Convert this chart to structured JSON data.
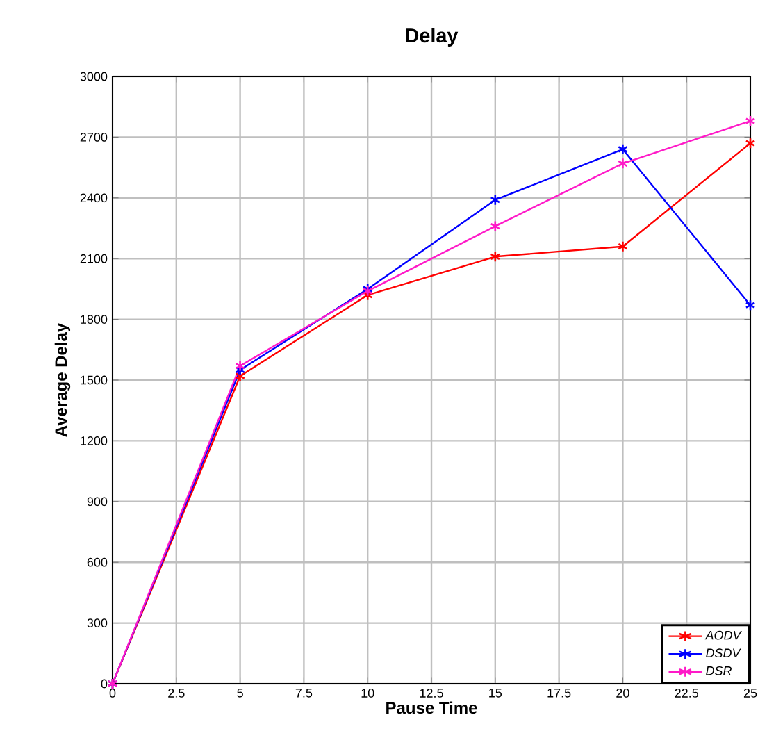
{
  "chart_data": {
    "type": "line",
    "title": "Delay",
    "xlabel": "Pause Time",
    "ylabel": "Average Delay",
    "x": [
      0,
      5,
      10,
      15,
      20,
      25
    ],
    "series": [
      {
        "name": "AODV",
        "color": "#ff0000",
        "values": [
          0,
          1520,
          1920,
          2110,
          2160,
          2670
        ]
      },
      {
        "name": "DSDV",
        "color": "#0000ff",
        "values": [
          0,
          1550,
          1950,
          2390,
          2640,
          1870
        ]
      },
      {
        "name": "DSR",
        "color": "#ff19c8",
        "values": [
          0,
          1570,
          1940,
          2260,
          2570,
          2780
        ]
      }
    ],
    "xlim": [
      0,
      25
    ],
    "ylim": [
      0,
      3000
    ],
    "xticks": [
      0,
      2.5,
      5,
      7.5,
      10,
      12.5,
      15,
      17.5,
      20,
      22.5,
      25
    ],
    "yticks": [
      0,
      300,
      600,
      900,
      1200,
      1500,
      1800,
      2100,
      2400,
      2700,
      3000
    ],
    "grid": true,
    "legend": "bottom right",
    "marker": "cross",
    "line_style": "solid"
  }
}
